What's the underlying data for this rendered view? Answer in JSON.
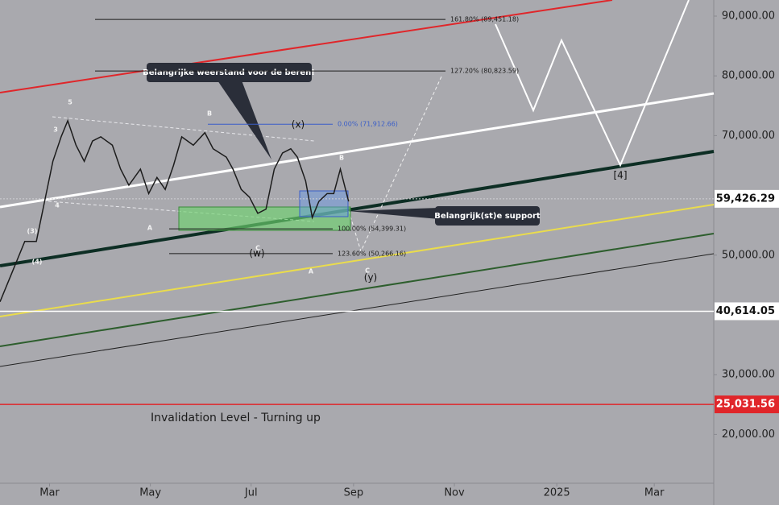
{
  "chart_data": {
    "type": "line",
    "x": [
      0,
      7,
      15,
      22,
      27,
      32,
      37,
      41,
      46,
      51,
      56,
      61,
      68,
      73,
      78,
      85,
      90,
      95,
      100,
      105,
      110,
      117,
      124,
      129,
      137,
      141,
      146,
      151,
      156,
      161,
      166,
      171,
      176,
      180,
      185,
      189,
      193,
      198,
      202,
      206,
      211
    ],
    "series": [
      {
        "color": "#1c1c1c",
        "values": [
          42200,
          46900,
          52300,
          52300,
          59000,
          65700,
          69800,
          72500,
          68400,
          65700,
          69100,
          69800,
          68400,
          64400,
          61700,
          64400,
          60300,
          63000,
          61000,
          65000,
          69800,
          68400,
          70500,
          67800,
          66400,
          64400,
          61000,
          59700,
          57000,
          57700,
          64400,
          67100,
          67800,
          66400,
          62400,
          56300,
          59000,
          60300,
          60300,
          64400,
          59000
        ]
      }
    ],
    "xlim": [
      0,
      432
    ],
    "xticks": [
      {
        "value": 30,
        "label": "Mar"
      },
      {
        "value": 91,
        "label": "May"
      },
      {
        "value": 152,
        "label": "Jul"
      },
      {
        "value": 214,
        "label": "Sep"
      },
      {
        "value": 275,
        "label": "Nov"
      },
      {
        "value": 337,
        "label": "2025"
      },
      {
        "value": 396,
        "label": "Mar"
      }
    ],
    "ylim": [
      11833,
      92695
    ],
    "yticks": [
      {
        "value": 90000,
        "label": "90,000.00"
      },
      {
        "value": 80000,
        "label": "80,000.00"
      },
      {
        "value": 70000,
        "label": "70,000.00"
      },
      {
        "value": 50000,
        "label": "50,000.00"
      },
      {
        "value": 30000,
        "label": "30,000.00"
      },
      {
        "value": 20000,
        "label": "20,000.00"
      }
    ],
    "price_lines": [
      {
        "value": 59426.29,
        "label": "59,426.29"
      },
      {
        "value": 40614.05,
        "label": "40,614.05"
      },
      {
        "value": 25031.56,
        "label": "25,031.56"
      }
    ],
    "fib_levels": [
      {
        "value": 89451.18,
        "label": "161.80% (89,451.18)"
      },
      {
        "value": 80823.59,
        "label": "127.20% (80,823.59)"
      },
      {
        "value": 71912.66,
        "label": "0.00% (71,912.66)"
      },
      {
        "value": 54399.31,
        "label": "100.00% (54,399.31)"
      },
      {
        "value": 50266.16,
        "label": "123.60% (50,266.16)"
      }
    ],
    "callouts": [
      "Belangrijke weerstand voor de beren!",
      "Belangrijk(st)e support"
    ],
    "invalidation_text": "Invalidation Level - Turning up",
    "wave_labels": [
      "(x)",
      "(w)",
      "(y)",
      "[4]",
      "B",
      "B",
      "C",
      "C",
      "A",
      "A",
      "5",
      "3",
      "4",
      "(3)",
      "(4)"
    ]
  }
}
